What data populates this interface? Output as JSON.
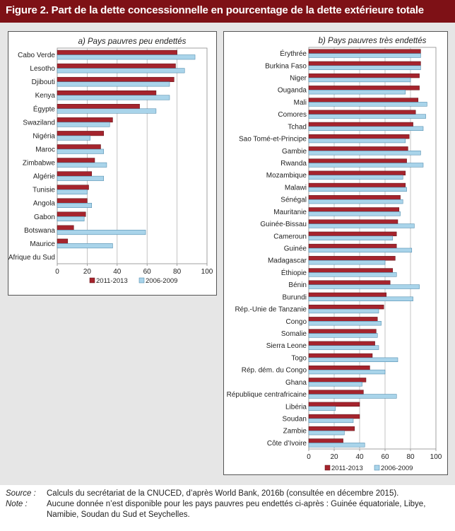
{
  "header": {
    "title": "Figure 2. Part de la dette concessionnelle en pourcentage de la dette extérieure totale"
  },
  "colors": {
    "header_bg": "#7e1116",
    "series_2011": "#a5242d",
    "series_2006": "#a9d4ea"
  },
  "footer": {
    "source_label": "Source :",
    "source_text": "Calculs du secrétariat de la CNUCED, d’après World Bank, 2016b (consultée en décembre 2015).",
    "note_label": "Note :",
    "note_text": "Aucune donnée n’est disponible pour les pays pauvres peu endettés ci-après : Guinée équatoriale, Libye, Namibie, Soudan du Sud et Seychelles."
  },
  "chart_data": [
    {
      "type": "bar",
      "orientation": "horizontal",
      "title": "a) Pays pauvres peu endettés",
      "categories": [
        "Cabo Verde",
        "Lesotho",
        "Djibouti",
        "Kenya",
        "Égypte",
        "Swaziland",
        "Nigéria",
        "Maroc",
        "Zimbabwe",
        "Algérie",
        "Tunisie",
        "Angola",
        "Gabon",
        "Botswana",
        "Maurice",
        "Afrique du Sud"
      ],
      "series": [
        {
          "name": "2011-2013",
          "values": [
            80,
            79,
            78,
            66,
            55,
            37,
            31,
            29,
            25,
            23,
            21,
            20,
            19,
            11,
            7,
            0
          ]
        },
        {
          "name": "2006-2009",
          "values": [
            92,
            85,
            75,
            75,
            66,
            35,
            22,
            31,
            33,
            31,
            20,
            23,
            18,
            59,
            37,
            0
          ]
        }
      ],
      "xlim": [
        0,
        100
      ],
      "ticks": [
        0,
        20,
        40,
        60,
        80,
        100
      ],
      "grid": true,
      "legend": "bottom"
    },
    {
      "type": "bar",
      "orientation": "horizontal",
      "title": "b) Pays pauvres très endettés",
      "categories": [
        "Érythrée",
        "Burkina Faso",
        "Niger",
        "Ouganda",
        "Mali",
        "Comores",
        "Tchad",
        "Sao Tomé-et-Principe",
        "Gambie",
        "Rwanda",
        "Mozambique",
        "Malawi",
        "Sénégal",
        "Mauritanie",
        "Guinée-Bissau",
        "Cameroun",
        "Guinée",
        "Madagascar",
        "Éthiopie",
        "Bénin",
        "Burundi",
        "Rép.-Unie de Tanzanie",
        "Congo",
        "Somalie",
        "Sierra Leone",
        "Togo",
        "Rép. dém. du Congo",
        "Ghana",
        "République centrafricaine",
        "Libéria",
        "Soudan",
        "Zambie",
        "Côte d’Ivoire"
      ],
      "series": [
        {
          "name": "2011-2013",
          "values": [
            88,
            88,
            87,
            87,
            86,
            84,
            82,
            79,
            78,
            77,
            76,
            76,
            72,
            71,
            70,
            69,
            69,
            68,
            66,
            64,
            61,
            59,
            54,
            53,
            52,
            50,
            48,
            45,
            43,
            40,
            40,
            36,
            27
          ]
        },
        {
          "name": "2006-2009",
          "values": [
            88,
            88,
            80,
            76,
            93,
            92,
            90,
            76,
            88,
            90,
            74,
            77,
            74,
            72,
            83,
            66,
            81,
            60,
            69,
            87,
            82,
            55,
            57,
            54,
            55,
            70,
            60,
            42,
            69,
            21,
            35,
            28,
            44
          ]
        }
      ],
      "xlim": [
        0,
        100
      ],
      "ticks": [
        0,
        20,
        40,
        60,
        80,
        100
      ],
      "grid": true,
      "legend": "bottom"
    }
  ]
}
